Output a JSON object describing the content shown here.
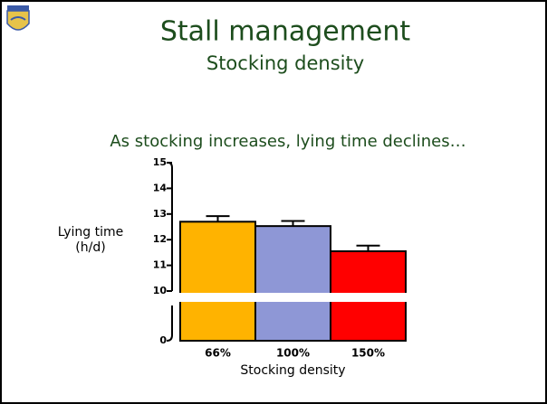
{
  "slide": {
    "title": "Stall management",
    "subtitle": "Stocking density",
    "caption": "As stocking increases, lying time declines…"
  },
  "chart_data": {
    "type": "bar",
    "categories": [
      "66%",
      "100%",
      "150%"
    ],
    "values": [
      12.7,
      12.53,
      11.55
    ],
    "errors": [
      0.22,
      0.2,
      0.22
    ],
    "colors": [
      "#ffb300",
      "#8e97d6",
      "#ff0000"
    ],
    "ylabel": [
      "Lying time",
      "(h/d)"
    ],
    "xlabel": "Stocking density",
    "ylim": [
      0,
      15
    ],
    "yticks": [
      0,
      10,
      11,
      12,
      13,
      14,
      15
    ],
    "axis_break": true
  }
}
